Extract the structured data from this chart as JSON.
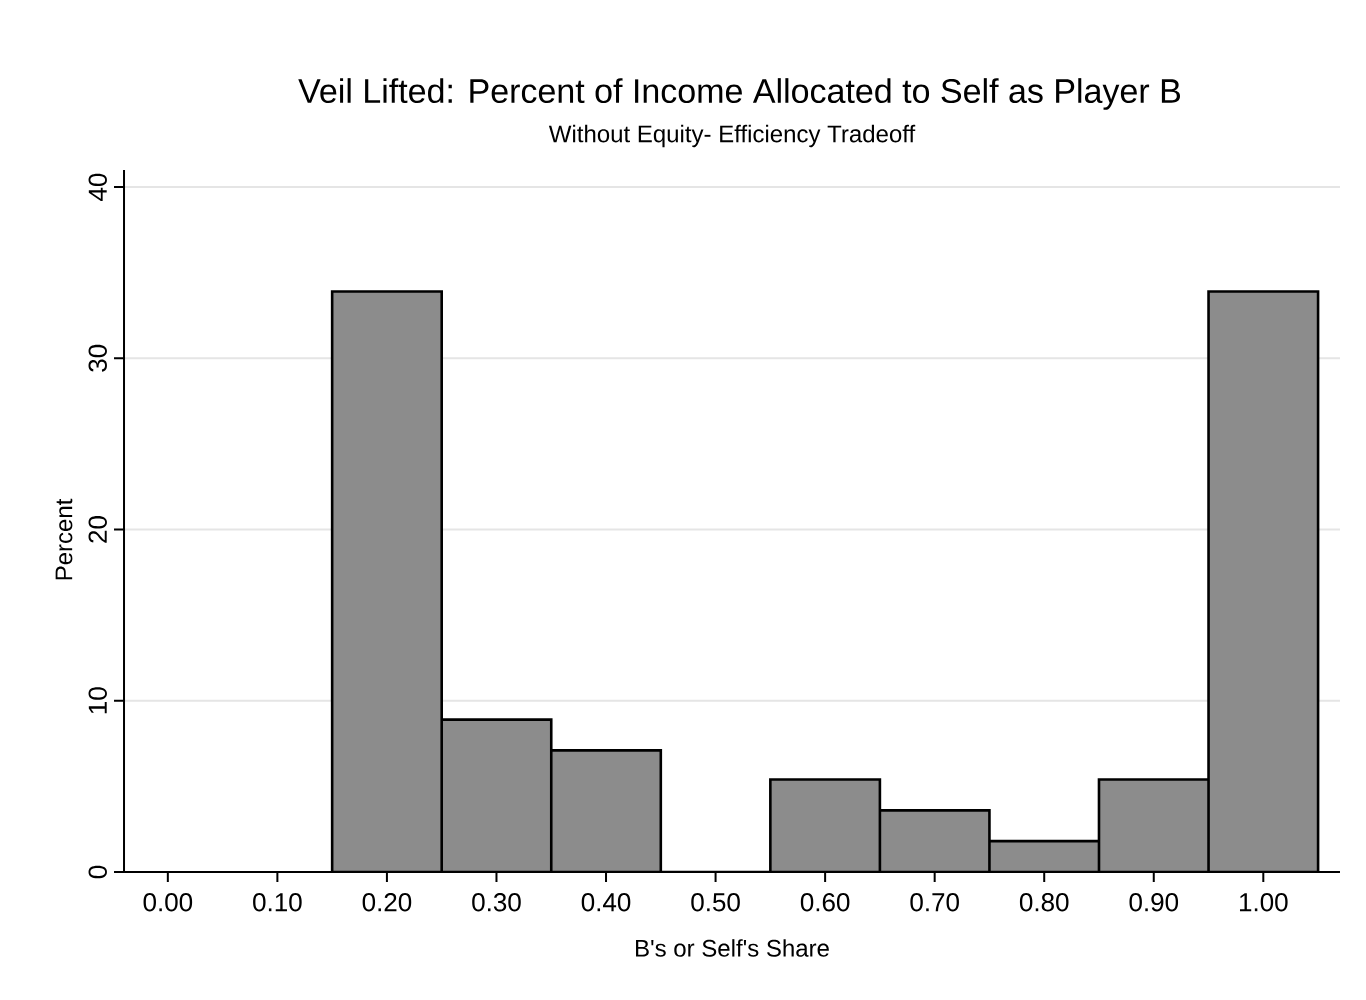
{
  "chart_data": {
    "type": "histogram",
    "title": "Veil Lifted: Percent of Income Allocated to Self as Player B",
    "subtitle": "Without Equity- Efficiency Tradeoff",
    "xlabel": "B's or Self's Share",
    "ylabel": "Percent",
    "bins": [
      0.15,
      0.25,
      0.35,
      0.45,
      0.55,
      0.65,
      0.75,
      0.85,
      0.95,
      1.05
    ],
    "values": [
      33.9,
      8.9,
      7.1,
      0,
      5.4,
      3.6,
      1.8,
      5.4,
      33.9
    ],
    "color": "#8c8c8c",
    "xlim": [
      -0.04,
      1.07
    ],
    "xticks": [
      {
        "value": 0,
        "label": "0.00"
      },
      {
        "value": 0.1,
        "label": "0.10"
      },
      {
        "value": 0.2,
        "label": "0.20"
      },
      {
        "value": 0.3,
        "label": "0.30"
      },
      {
        "value": 0.4,
        "label": "0.40"
      },
      {
        "value": 0.5,
        "label": "0.50"
      },
      {
        "value": 0.6,
        "label": "0.60"
      },
      {
        "value": 0.7,
        "label": "0.70"
      },
      {
        "value": 0.8,
        "label": "0.80"
      },
      {
        "value": 0.9,
        "label": "0.90"
      },
      {
        "value": 1.0,
        "label": "1.00"
      }
    ],
    "ylim": [
      0,
      41
    ],
    "yticks": [
      0,
      10,
      20,
      30,
      40
    ],
    "grid": "y"
  }
}
